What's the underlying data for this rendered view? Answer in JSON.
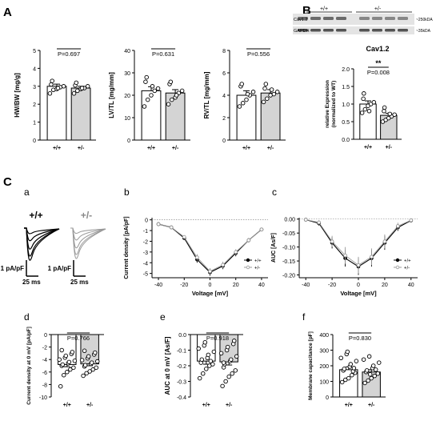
{
  "panels": {
    "A": "A",
    "B": "B",
    "C": "C",
    "a": "a",
    "b": "b",
    "c": "c",
    "d": "d",
    "e": "e",
    "f": "f"
  },
  "colors": {
    "wt_fill": "#ffffff",
    "het_fill": "#d4d4d4",
    "wt_line": "#000000",
    "het_line": "#9a9a9a"
  },
  "chart_data": [
    {
      "id": "hwbw",
      "type": "bar",
      "ylabel": "HW/BW [mg/g]",
      "ylim": [
        0,
        5
      ],
      "yticks": [
        0,
        1,
        2,
        3,
        4,
        5
      ],
      "categories": [
        "+/+",
        "+/-"
      ],
      "values": [
        3.0,
        2.9
      ],
      "errors": [
        0.12,
        0.1
      ],
      "pvalue": "P=0.697",
      "points": [
        [
          2.6,
          2.8,
          2.85,
          2.95,
          3.0,
          3.1,
          3.3,
          2.9
        ],
        [
          2.6,
          2.75,
          2.85,
          2.9,
          3.0,
          3.05,
          3.2,
          2.9
        ]
      ]
    },
    {
      "id": "lvtl",
      "type": "bar",
      "ylabel": "LV/TL [mg/mm]",
      "ylim": [
        0,
        40
      ],
      "yticks": [
        0,
        10,
        20,
        30,
        40
      ],
      "categories": [
        "+/+",
        "+/-"
      ],
      "values": [
        22,
        21
      ],
      "errors": [
        1.8,
        1.5
      ],
      "pvalue": "P=0.631",
      "points": [
        [
          15,
          18,
          20,
          22,
          23,
          26,
          28,
          24
        ],
        [
          16,
          18,
          19,
          21,
          22,
          25,
          26,
          20
        ]
      ]
    },
    {
      "id": "rvtl",
      "type": "bar",
      "ylabel": "RV/TL [mg/mm]",
      "ylim": [
        0,
        8
      ],
      "yticks": [
        0,
        2,
        4,
        6,
        8
      ],
      "categories": [
        "+/+",
        "+/-"
      ],
      "values": [
        4.0,
        4.2
      ],
      "errors": [
        0.4,
        0.3
      ],
      "pvalue": "P=0.556",
      "points": [
        [
          3.0,
          3.3,
          3.6,
          4.0,
          4.3,
          4.8,
          5.0,
          4.1
        ],
        [
          3.4,
          3.7,
          4.0,
          4.1,
          4.3,
          4.6,
          5.0,
          4.5
        ]
      ]
    },
    {
      "id": "cav",
      "type": "bar",
      "title": "Cav1.2",
      "ylabel": "relative Expression",
      "ylabel2": "(normalized to WT)",
      "ylim": [
        0,
        2.0
      ],
      "yticks": [
        0.0,
        0.5,
        1.0,
        1.5,
        2.0
      ],
      "ytick_labels": [
        "0.0",
        "0.5",
        "1.0",
        "1.5",
        "2.0"
      ],
      "categories": [
        "+/+",
        "+/-"
      ],
      "values": [
        1.0,
        0.68
      ],
      "errors": [
        0.09,
        0.06
      ],
      "pvalue": "P=0.008",
      "stars": "**",
      "points": [
        [
          0.75,
          0.85,
          0.95,
          1.0,
          1.05,
          1.15,
          1.3,
          0.8
        ],
        [
          0.5,
          0.55,
          0.6,
          0.65,
          0.7,
          0.8,
          0.9,
          0.72
        ]
      ]
    },
    {
      "id": "cd0",
      "type": "bar",
      "ylabel": "Current density at 0 mV [pA/pF]",
      "ylim": [
        -10,
        0
      ],
      "yticks": [
        -10,
        -8,
        -6,
        -4,
        -2,
        0
      ],
      "categories": [
        "+/+",
        "+/-"
      ],
      "values": [
        -4.8,
        -4.7
      ],
      "errors": [
        0.35,
        0.3
      ],
      "pvalue": "P=0.766",
      "points": [
        [
          -8.3,
          -6.5,
          -6.0,
          -5.6,
          -5.3,
          -5.0,
          -4.8,
          -4.6,
          -4.4,
          -4.2,
          -4.0,
          -3.7,
          -3.4,
          -3.1,
          -2.8,
          -2.5
        ],
        [
          -6.6,
          -6.2,
          -5.9,
          -5.6,
          -5.3,
          -5.1,
          -4.9,
          -4.7,
          -4.5,
          -4.3,
          -4.1,
          -3.8,
          -3.5,
          -3.2,
          -2.9,
          -2.6
        ]
      ]
    },
    {
      "id": "auc0",
      "type": "bar",
      "ylabel": "AUC at 0 mV [As/F]",
      "ylim": [
        -0.4,
        0
      ],
      "yticks": [
        -0.4,
        -0.3,
        -0.2,
        -0.1,
        0.0
      ],
      "ytick_labels": [
        "-0.4",
        "-0.3",
        "-0.2",
        "-0.1",
        "0.0"
      ],
      "categories": [
        "+/+",
        "+/-"
      ],
      "values": [
        -0.17,
        -0.175
      ],
      "errors": [
        0.02,
        0.02
      ],
      "pvalue": "P=0.918",
      "points": [
        [
          -0.28,
          -0.25,
          -0.22,
          -0.2,
          -0.19,
          -0.18,
          -0.16,
          -0.15,
          -0.13,
          -0.11,
          -0.09,
          -0.07,
          -0.05,
          -0.17
        ],
        [
          -0.33,
          -0.3,
          -0.27,
          -0.25,
          -0.23,
          -0.21,
          -0.19,
          -0.17,
          -0.16,
          -0.14,
          -0.12,
          -0.1,
          -0.08,
          -0.06,
          -0.04,
          -0.18
        ]
      ]
    },
    {
      "id": "cap",
      "type": "bar",
      "ylabel": "Membrane capacitance [pF]",
      "ylim": [
        0,
        400
      ],
      "yticks": [
        0,
        100,
        200,
        300,
        400
      ],
      "categories": [
        "+/+",
        "+/-"
      ],
      "values": [
        175,
        160
      ],
      "errors": [
        18,
        15
      ],
      "pvalue": "P=0.830",
      "points": [
        [
          95,
          110,
          120,
          140,
          155,
          170,
          180,
          195,
          210,
          230,
          250,
          275,
          290,
          165,
          185
        ],
        [
          90,
          105,
          120,
          135,
          150,
          160,
          170,
          185,
          200,
          220,
          240,
          260,
          145,
          175
        ]
      ]
    },
    {
      "id": "iv",
      "type": "line",
      "xlabel": "Voltage [mV]",
      "ylabel": "Current density [pA/pF]",
      "xlim": [
        -45,
        45
      ],
      "ylim": [
        -5.4,
        0.2
      ],
      "xticks": [
        -40,
        -20,
        0,
        20,
        40
      ],
      "yticks": [
        -5,
        -4,
        -3,
        -2,
        -1,
        0
      ],
      "x": [
        -40,
        -30,
        -20,
        -10,
        0,
        10,
        20,
        30,
        40
      ],
      "series": [
        {
          "name": "+/+",
          "values": [
            -0.4,
            -0.7,
            -1.7,
            -3.7,
            -4.9,
            -4.3,
            -3.1,
            -1.9,
            -0.9
          ],
          "err": [
            0.05,
            0.1,
            0.15,
            0.3,
            0.3,
            0.3,
            0.3,
            0.2,
            0.15
          ]
        },
        {
          "name": "+/-",
          "values": [
            -0.4,
            -0.7,
            -1.6,
            -3.5,
            -4.8,
            -4.2,
            -3.0,
            -1.9,
            -0.9
          ],
          "err": [
            0.05,
            0.1,
            0.15,
            0.3,
            0.3,
            0.3,
            0.25,
            0.2,
            0.15
          ]
        }
      ]
    },
    {
      "id": "auciv",
      "type": "line",
      "xlabel": "Voltage [mV]",
      "ylabel": "AUC [As/F]",
      "xlim": [
        -45,
        45
      ],
      "ylim": [
        -0.21,
        0.005
      ],
      "xticks": [
        -40,
        -20,
        0,
        20,
        40
      ],
      "yticks": [
        -0.2,
        -0.15,
        -0.1,
        -0.05,
        0.0
      ],
      "ytick_labels": [
        "-0.20",
        "-0.15",
        "-0.10",
        "-0.05",
        "0.00"
      ],
      "x": [
        -40,
        -30,
        -20,
        -10,
        0,
        10,
        20,
        30,
        40
      ],
      "series": [
        {
          "name": "+/+",
          "values": [
            -0.002,
            -0.015,
            -0.085,
            -0.14,
            -0.17,
            -0.14,
            -0.085,
            -0.03,
            -0.005
          ],
          "err": [
            0.002,
            0.008,
            0.02,
            0.03,
            0.03,
            0.03,
            0.025,
            0.012,
            0.003
          ]
        },
        {
          "name": "+/-",
          "values": [
            -0.002,
            -0.012,
            -0.08,
            -0.13,
            -0.165,
            -0.135,
            -0.08,
            -0.025,
            -0.004
          ],
          "err": [
            0.002,
            0.008,
            0.02,
            0.03,
            0.03,
            0.03,
            0.025,
            0.012,
            0.003
          ]
        }
      ]
    }
  ],
  "blot": {
    "headers": [
      "+/+",
      "+/-"
    ],
    "rows": [
      "Cav1.2",
      "GAPDH"
    ],
    "markers": [
      "~250kDA",
      "~35kDA"
    ]
  },
  "traces": {
    "wt_label": "+/+",
    "het_label": "+/-",
    "scale_y": "1 pA/pF",
    "scale_x": "25 ms"
  }
}
